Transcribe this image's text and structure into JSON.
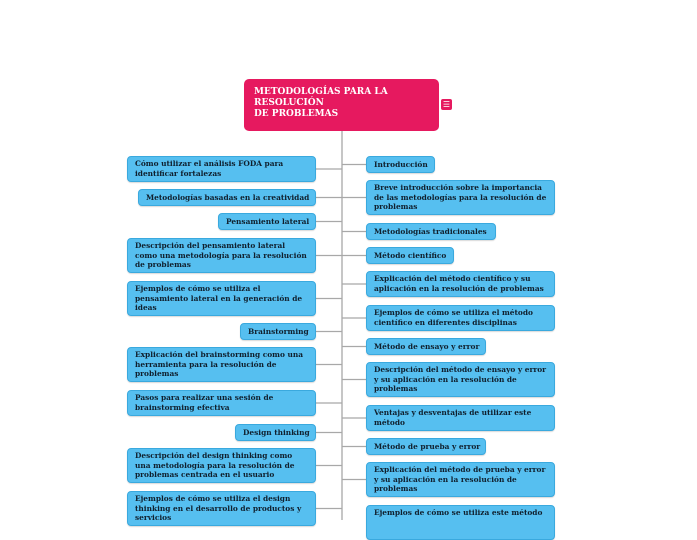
{
  "title": {
    "line1": "METODOLOGÍAS PARA LA",
    "line2": "RESOLUCIÓN",
    "line3": "DE PROBLEMAS",
    "menu_icon": "hamburger-menu-icon"
  },
  "colors": {
    "title_bg": "#e6195f",
    "node_bg": "#56bff0",
    "connector": "#a8a8a8"
  },
  "left_nodes": [
    "Cómo utilizar el análisis FODA para identificar fortalezas",
    "Metodologías basadas en la creatividad",
    "Pensamiento lateral",
    "Descripción del pensamiento lateral como una metodología para la resolución de problemas",
    "Ejemplos de cómo se utiliza el pensamiento lateral en la generación de ideas",
    "Brainstorming",
    "Explicación del brainstorming como una herramienta para la resolución de problemas",
    "Pasos para realizar una sesión de brainstorming efectiva",
    "Design thinking",
    "Descripción del design thinking como una metodología para la resolución de problemas centrada en el usuario",
    "Ejemplos de cómo se utiliza el design thinking en el desarrollo de productos y servicios"
  ],
  "right_nodes": [
    "Introducción",
    "Breve introducción sobre la importancia de las metodologías para la resolución de problemas",
    "Metodologías tradicionales",
    "Método científico",
    "Explicación del método científico y su aplicación en la resolución de problemas",
    "Ejemplos de cómo se utiliza el método científico en diferentes disciplinas",
    "Método de ensayo y error",
    "Descripción del método de ensayo y error y su aplicación en la resolución de problemas",
    "Ventajas y desventajas de utilizar este método",
    "Método de prueba y error",
    "Explicación del método de prueba y error y su aplicación en la resolución de problemas",
    "Ejemplos de cómo se utiliza este método"
  ]
}
